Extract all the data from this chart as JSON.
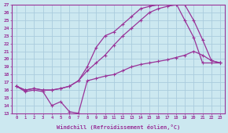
{
  "xlabel": "Windchill (Refroidissement éolien,°C)",
  "background_color": "#cce8f0",
  "grid_color": "#aaccdd",
  "line_color": "#993399",
  "xlim": [
    -0.5,
    23.5
  ],
  "ylim": [
    13,
    27
  ],
  "xticks": [
    0,
    1,
    2,
    3,
    4,
    5,
    6,
    7,
    8,
    9,
    10,
    11,
    12,
    13,
    14,
    15,
    16,
    17,
    18,
    19,
    20,
    21,
    22,
    23
  ],
  "yticks": [
    13,
    14,
    15,
    16,
    17,
    18,
    19,
    20,
    21,
    22,
    23,
    24,
    25,
    26,
    27
  ],
  "s1_x": [
    0,
    1,
    2,
    3,
    4,
    5,
    6,
    7,
    8,
    9,
    10,
    11,
    12,
    13,
    14,
    15,
    16,
    17,
    18,
    19,
    20,
    21,
    22,
    23
  ],
  "s1_y": [
    16.5,
    15.8,
    16.0,
    15.8,
    14.0,
    14.5,
    13.2,
    13.0,
    17.2,
    17.5,
    17.8,
    18.0,
    18.5,
    19.0,
    19.3,
    19.5,
    19.7,
    19.9,
    20.2,
    20.5,
    21.0,
    20.5,
    19.8,
    19.5
  ],
  "s2_x": [
    0,
    1,
    2,
    3,
    4,
    5,
    6,
    7,
    8,
    9,
    10,
    11,
    12,
    13,
    14,
    15,
    16,
    17,
    18,
    19,
    20,
    21,
    22,
    23
  ],
  "s2_y": [
    16.5,
    16.0,
    16.2,
    16.0,
    16.0,
    16.2,
    16.5,
    17.2,
    19.0,
    21.5,
    23.0,
    23.5,
    24.5,
    25.5,
    26.5,
    26.8,
    27.0,
    27.2,
    27.2,
    25.0,
    22.8,
    19.5,
    19.5,
    19.5
  ],
  "s3_x": [
    0,
    1,
    2,
    3,
    4,
    5,
    6,
    7,
    8,
    9,
    10,
    11,
    12,
    13,
    14,
    15,
    16,
    17,
    18,
    19,
    20,
    21,
    22,
    23
  ],
  "s3_y": [
    16.5,
    16.0,
    16.2,
    16.0,
    16.0,
    16.2,
    16.5,
    17.2,
    18.5,
    19.5,
    20.5,
    21.8,
    23.0,
    24.0,
    25.0,
    26.0,
    26.5,
    26.8,
    27.0,
    27.0,
    25.0,
    22.5,
    19.8,
    19.5
  ]
}
